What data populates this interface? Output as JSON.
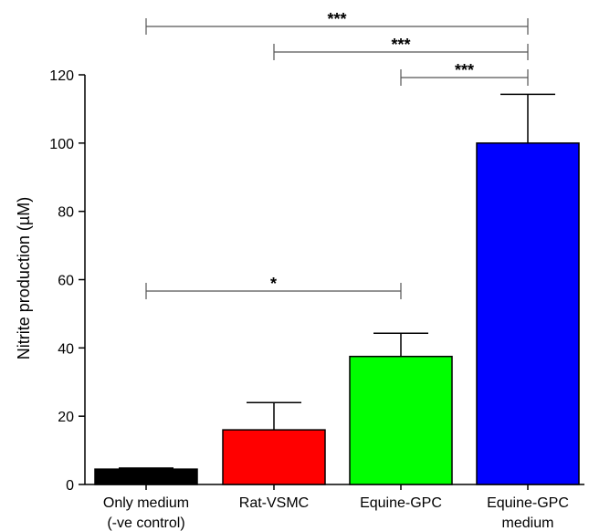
{
  "chart_data": {
    "type": "bar",
    "ylabel": "Nitrite production (µM)",
    "xlabel": "",
    "ylim": [
      0,
      120
    ],
    "yticks": [
      0,
      20,
      40,
      60,
      80,
      100,
      120
    ],
    "categories": [
      {
        "line1": "Only medium",
        "line2": "(-ve control)"
      },
      {
        "line1": "Rat-VSMC",
        "line2": ""
      },
      {
        "line1": "Equine-GPC",
        "line2": ""
      },
      {
        "line1": "Equine-GPC",
        "line2": "medium"
      }
    ],
    "values": [
      4.5,
      16,
      37.5,
      100
    ],
    "errors": [
      0.3,
      8,
      6.8,
      14.3
    ],
    "colors": [
      "#000000",
      "#ff0000",
      "#00ff00",
      "#0000ff"
    ],
    "significance": [
      {
        "from": 0,
        "to": 3,
        "label": "***"
      },
      {
        "from": 1,
        "to": 3,
        "label": "***"
      },
      {
        "from": 2,
        "to": 3,
        "label": "***"
      },
      {
        "from": 0,
        "to": 2,
        "label": "*"
      }
    ],
    "grid": false,
    "legend": "none"
  }
}
